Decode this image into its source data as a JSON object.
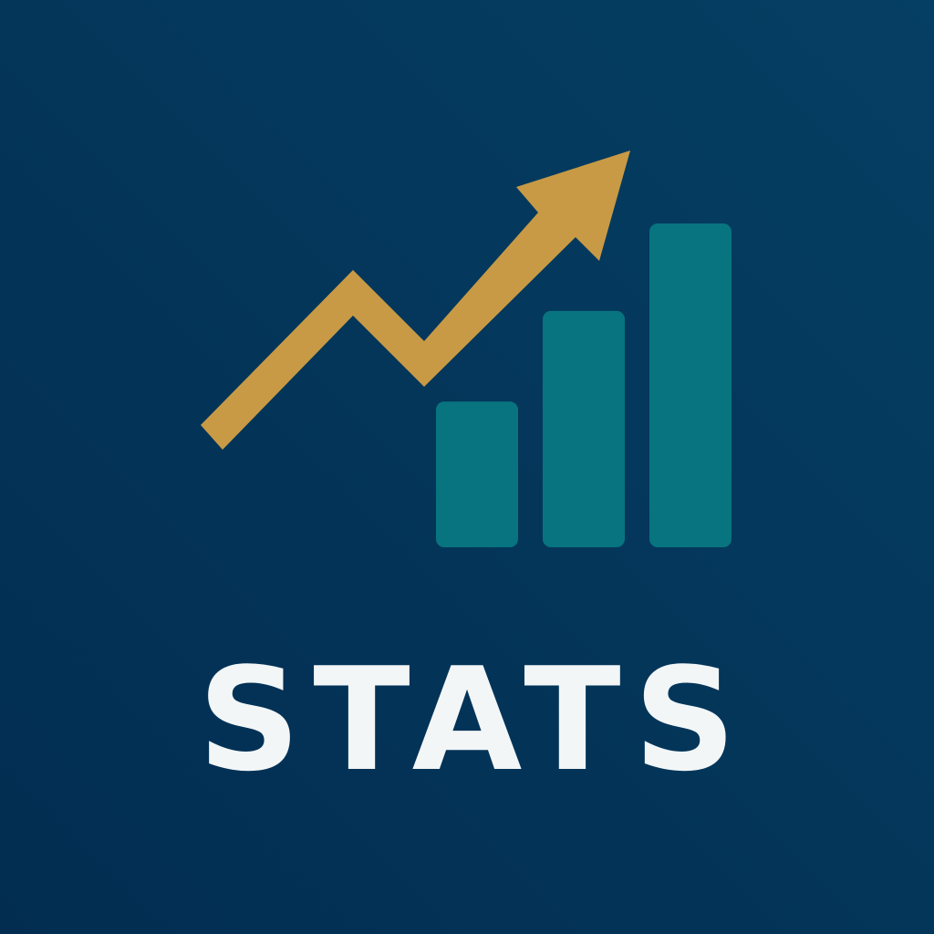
{
  "brand": {
    "wordmark": "STATS"
  },
  "icons": {
    "logo": "rising-arrow-bar-chart-icon",
    "arrow": "trend-up-arrow-icon",
    "bars": "bar-chart-icon"
  },
  "colors": {
    "background_top": "#053F63",
    "background_bottom": "#022D51",
    "arrow": "#C89A45",
    "bars": "#08747F",
    "wordmark": "#F2F6F7"
  },
  "bar_levels": [
    0.45,
    0.73,
    1.0
  ]
}
